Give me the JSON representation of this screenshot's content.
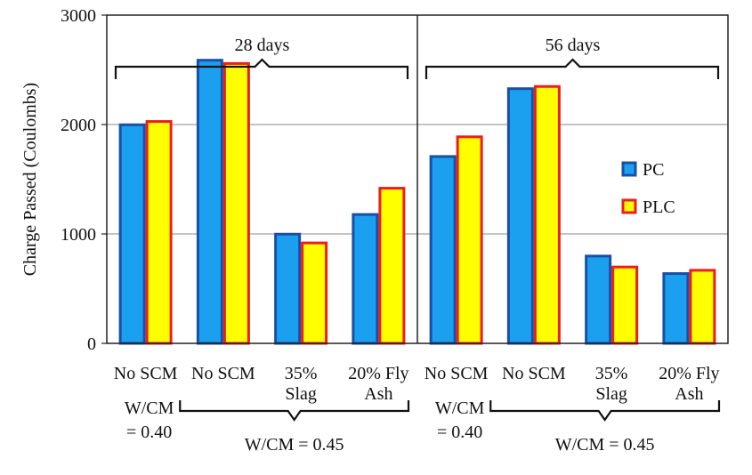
{
  "chart_data": {
    "type": "bar",
    "ylabel": "Charge Passed (Coulombs)",
    "ylim": [
      0,
      3000
    ],
    "yticks": [
      0,
      1000,
      2000,
      3000
    ],
    "grid": true,
    "legend_position": "right",
    "panels": [
      {
        "label": "28 days",
        "categories": [
          [
            "No SCM"
          ],
          [
            "No SCM"
          ],
          [
            "35%",
            "Slag"
          ],
          [
            "20% Fly",
            "Ash"
          ]
        ]
      },
      {
        "label": "56 days",
        "categories": [
          [
            "No SCM"
          ],
          [
            "No SCM"
          ],
          [
            "35%",
            "Slag"
          ],
          [
            "20% Fly",
            "Ash"
          ]
        ]
      }
    ],
    "series": [
      {
        "name": "PC",
        "color": "#1aa0ee",
        "border": "#1a4fa8",
        "values": [
          2010,
          2600,
          1010,
          1190,
          1720,
          2340,
          810,
          650
        ]
      },
      {
        "name": "PLC",
        "color": "#ffff00",
        "border": "#ee1c1c",
        "values": [
          2040,
          2570,
          930,
          1430,
          1900,
          2360,
          710,
          680
        ]
      }
    ],
    "groups": [
      {
        "label_lines": [
          "W/CM",
          "= 0.40"
        ]
      },
      {
        "label": "W/CM = 0.45"
      },
      {
        "label_lines": [
          "W/CM",
          "= 0.40"
        ]
      },
      {
        "label": "W/CM = 0.45"
      }
    ]
  }
}
